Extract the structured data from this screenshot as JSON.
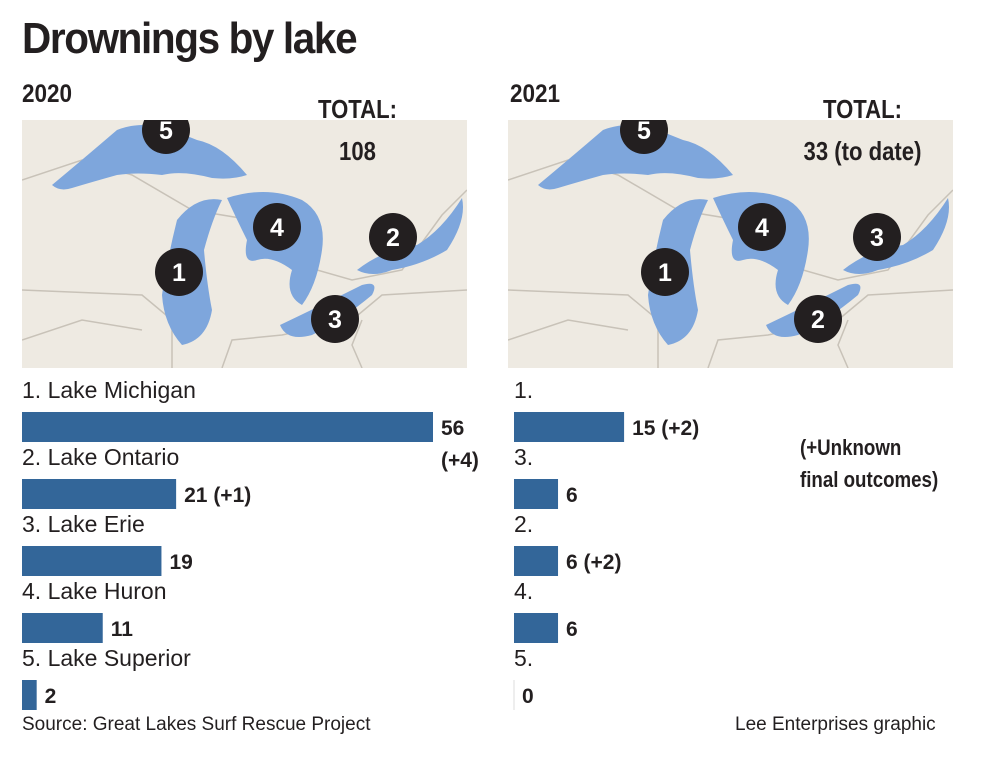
{
  "title": "Drownings by lake",
  "note": [
    "(+Unknown",
    "final outcomes)"
  ],
  "source": "Source: Great Lakes Surf Rescue Project",
  "credit": "Lee Enterprises graphic",
  "colors": {
    "bar": "#336699",
    "lake": "#7ea6dc",
    "land": "#eeeae2",
    "marker": "#231f20"
  },
  "panels": [
    {
      "year": "2020",
      "total_label": "TOTAL:",
      "total_value": "108",
      "markers": {
        "superior": "5",
        "michigan": "1",
        "huron": "4",
        "ontario": "2",
        "erie": "3"
      }
    },
    {
      "year": "2021",
      "total_label": "TOTAL:",
      "total_value": "33 (to date)",
      "markers": {
        "superior": "5",
        "michigan": "1",
        "huron": "4",
        "ontario": "3",
        "erie": "2"
      }
    }
  ],
  "chart_data": [
    {
      "type": "bar",
      "orientation": "horizontal",
      "categories": [
        "1. Lake Michigan",
        "2. Lake Ontario",
        "3. Lake Erie",
        "4. Lake Huron",
        "5. Lake Superior"
      ],
      "values": [
        56,
        21,
        19,
        11,
        2
      ],
      "data_labels": [
        "56",
        "21 (+1)",
        "19",
        "11",
        "2"
      ],
      "extra_labels": [
        "(+4)",
        "",
        "",
        "",
        ""
      ],
      "xlim": [
        0,
        56
      ]
    },
    {
      "type": "bar",
      "orientation": "horizontal",
      "categories": [
        "1.",
        "3.",
        "2.",
        "4.",
        "5."
      ],
      "values": [
        15,
        6,
        6,
        6,
        0
      ],
      "data_labels": [
        "15 (+2)",
        "6",
        "6 (+2)",
        "6",
        "0"
      ],
      "xlim": [
        0,
        56
      ]
    }
  ]
}
